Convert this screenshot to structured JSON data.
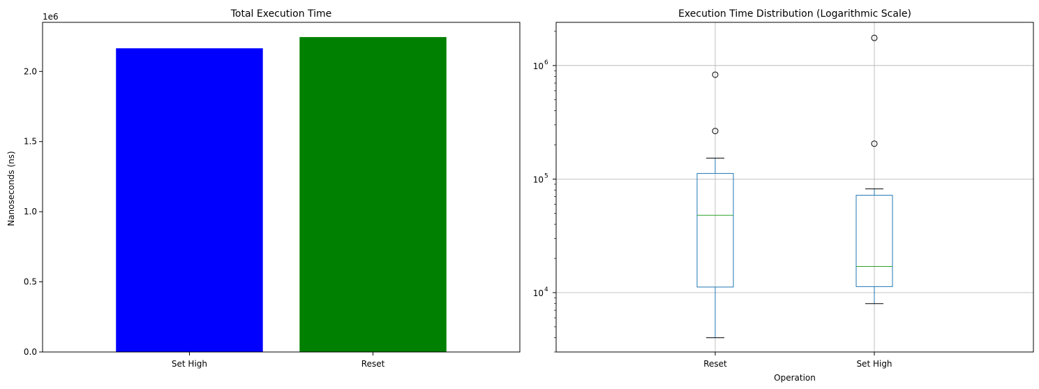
{
  "chart_data": [
    {
      "type": "bar",
      "title": "Total Execution Time",
      "categories": [
        "Set High",
        "Reset"
      ],
      "values": [
        2165000,
        2245000
      ],
      "bar_colors": [
        "#0000ff",
        "#008000"
      ],
      "xlabel": "",
      "ylabel": "Nanoseconds (ns)",
      "ylim": [
        0,
        2350000
      ],
      "yticks": [
        0,
        500000,
        1000000,
        1500000,
        2000000
      ],
      "ytick_labels": [
        "0.0",
        "0.5",
        "1.0",
        "1.5",
        "2.0"
      ],
      "offset_label": "1e6",
      "grid": false
    },
    {
      "type": "box",
      "title": "Execution Time Distribution (Logarithmic Scale)",
      "categories": [
        "Reset",
        "Set High"
      ],
      "xlabel": "Operation",
      "ylabel": "",
      "yscale": "log",
      "ylim": [
        3000,
        2400000
      ],
      "yticks": [
        10000,
        100000,
        1000000
      ],
      "ytick_labels": [
        "10",
        "10",
        "10"
      ],
      "ytick_exponents": [
        "4",
        "5",
        "6"
      ],
      "grid": true,
      "box_color": "#1f77b4",
      "median_color": "#2ca02c",
      "boxes": [
        {
          "label": "Reset",
          "whisker_low": 4000,
          "q1": 11200,
          "median": 48000,
          "q3": 112000,
          "whisker_high": 153000,
          "outliers": [
            265000,
            830000
          ]
        },
        {
          "label": "Set High",
          "whisker_low": 8000,
          "q1": 11300,
          "median": 17000,
          "q3": 72000,
          "whisker_high": 82000,
          "outliers": [
            205000,
            1750000
          ]
        }
      ]
    }
  ]
}
